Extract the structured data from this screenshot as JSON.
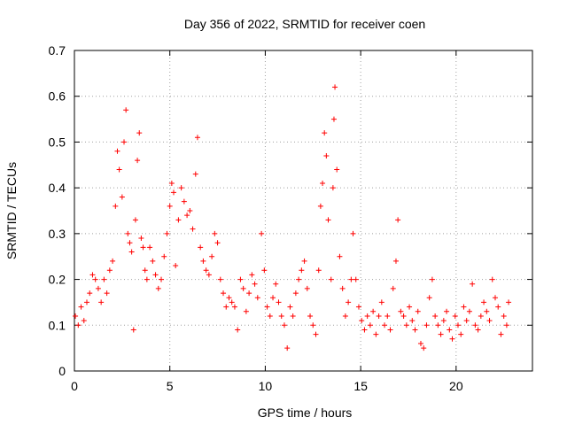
{
  "chart_data": {
    "type": "scatter",
    "title": "Day 356 of 2022, SRMTID for receiver coen",
    "xlabel": "GPS time / hours",
    "ylabel": "SRMTID / TECUs",
    "xlim": [
      0,
      24
    ],
    "ylim": [
      0,
      0.7
    ],
    "xticks": [
      0,
      5,
      10,
      15,
      20
    ],
    "yticks": [
      0,
      0.1,
      0.2,
      0.3,
      0.4,
      0.5,
      0.6,
      0.7
    ],
    "grid": true,
    "marker": "+",
    "color": "#ff0000",
    "series": [
      {
        "name": "SRMTID",
        "points": [
          [
            0.05,
            0.12
          ],
          [
            0.2,
            0.1
          ],
          [
            0.35,
            0.14
          ],
          [
            0.5,
            0.11
          ],
          [
            0.65,
            0.15
          ],
          [
            0.8,
            0.17
          ],
          [
            0.95,
            0.21
          ],
          [
            1.1,
            0.2
          ],
          [
            1.25,
            0.18
          ],
          [
            1.4,
            0.15
          ],
          [
            1.55,
            0.2
          ],
          [
            1.7,
            0.17
          ],
          [
            1.85,
            0.22
          ],
          [
            2.0,
            0.24
          ],
          [
            2.15,
            0.36
          ],
          [
            2.25,
            0.48
          ],
          [
            2.35,
            0.44
          ],
          [
            2.5,
            0.38
          ],
          [
            2.6,
            0.5
          ],
          [
            2.7,
            0.57
          ],
          [
            2.8,
            0.3
          ],
          [
            2.9,
            0.28
          ],
          [
            3.0,
            0.26
          ],
          [
            3.1,
            0.09
          ],
          [
            3.2,
            0.33
          ],
          [
            3.3,
            0.46
          ],
          [
            3.4,
            0.52
          ],
          [
            3.5,
            0.29
          ],
          [
            3.6,
            0.27
          ],
          [
            3.7,
            0.22
          ],
          [
            3.8,
            0.2
          ],
          [
            3.95,
            0.27
          ],
          [
            4.1,
            0.24
          ],
          [
            4.25,
            0.21
          ],
          [
            4.4,
            0.18
          ],
          [
            4.55,
            0.2
          ],
          [
            4.7,
            0.25
          ],
          [
            4.85,
            0.3
          ],
          [
            5.0,
            0.36
          ],
          [
            5.1,
            0.41
          ],
          [
            5.2,
            0.39
          ],
          [
            5.3,
            0.23
          ],
          [
            5.45,
            0.33
          ],
          [
            5.6,
            0.4
          ],
          [
            5.75,
            0.37
          ],
          [
            5.9,
            0.34
          ],
          [
            6.05,
            0.35
          ],
          [
            6.2,
            0.31
          ],
          [
            6.35,
            0.43
          ],
          [
            6.45,
            0.51
          ],
          [
            6.6,
            0.27
          ],
          [
            6.75,
            0.24
          ],
          [
            6.9,
            0.22
          ],
          [
            7.05,
            0.21
          ],
          [
            7.2,
            0.25
          ],
          [
            7.35,
            0.3
          ],
          [
            7.5,
            0.28
          ],
          [
            7.65,
            0.2
          ],
          [
            7.8,
            0.17
          ],
          [
            7.95,
            0.14
          ],
          [
            8.1,
            0.16
          ],
          [
            8.25,
            0.15
          ],
          [
            8.4,
            0.14
          ],
          [
            8.55,
            0.09
          ],
          [
            8.7,
            0.2
          ],
          [
            8.85,
            0.18
          ],
          [
            9.0,
            0.13
          ],
          [
            9.15,
            0.17
          ],
          [
            9.3,
            0.21
          ],
          [
            9.45,
            0.19
          ],
          [
            9.6,
            0.16
          ],
          [
            9.8,
            0.3
          ],
          [
            9.95,
            0.22
          ],
          [
            10.1,
            0.14
          ],
          [
            10.25,
            0.12
          ],
          [
            10.4,
            0.16
          ],
          [
            10.55,
            0.19
          ],
          [
            10.7,
            0.15
          ],
          [
            10.85,
            0.12
          ],
          [
            11.0,
            0.1
          ],
          [
            11.15,
            0.05
          ],
          [
            11.3,
            0.14
          ],
          [
            11.45,
            0.12
          ],
          [
            11.6,
            0.17
          ],
          [
            11.75,
            0.2
          ],
          [
            11.9,
            0.22
          ],
          [
            12.05,
            0.24
          ],
          [
            12.2,
            0.18
          ],
          [
            12.35,
            0.12
          ],
          [
            12.5,
            0.1
          ],
          [
            12.65,
            0.08
          ],
          [
            12.8,
            0.22
          ],
          [
            12.9,
            0.36
          ],
          [
            13.0,
            0.41
          ],
          [
            13.1,
            0.52
          ],
          [
            13.2,
            0.47
          ],
          [
            13.3,
            0.33
          ],
          [
            13.45,
            0.2
          ],
          [
            13.55,
            0.4
          ],
          [
            13.6,
            0.55
          ],
          [
            13.65,
            0.62
          ],
          [
            13.75,
            0.44
          ],
          [
            13.9,
            0.25
          ],
          [
            14.05,
            0.18
          ],
          [
            14.2,
            0.12
          ],
          [
            14.35,
            0.15
          ],
          [
            14.5,
            0.2
          ],
          [
            14.6,
            0.3
          ],
          [
            14.75,
            0.2
          ],
          [
            14.9,
            0.14
          ],
          [
            15.05,
            0.11
          ],
          [
            15.2,
            0.09
          ],
          [
            15.35,
            0.12
          ],
          [
            15.5,
            0.1
          ],
          [
            15.65,
            0.13
          ],
          [
            15.8,
            0.08
          ],
          [
            15.95,
            0.12
          ],
          [
            16.1,
            0.15
          ],
          [
            16.25,
            0.1
          ],
          [
            16.4,
            0.12
          ],
          [
            16.55,
            0.09
          ],
          [
            16.7,
            0.18
          ],
          [
            16.85,
            0.24
          ],
          [
            16.95,
            0.33
          ],
          [
            17.1,
            0.13
          ],
          [
            17.25,
            0.12
          ],
          [
            17.4,
            0.1
          ],
          [
            17.55,
            0.14
          ],
          [
            17.7,
            0.11
          ],
          [
            17.85,
            0.09
          ],
          [
            18.0,
            0.13
          ],
          [
            18.15,
            0.06
          ],
          [
            18.3,
            0.05
          ],
          [
            18.45,
            0.1
          ],
          [
            18.6,
            0.16
          ],
          [
            18.75,
            0.2
          ],
          [
            18.9,
            0.12
          ],
          [
            19.05,
            0.1
          ],
          [
            19.2,
            0.08
          ],
          [
            19.35,
            0.11
          ],
          [
            19.5,
            0.13
          ],
          [
            19.65,
            0.09
          ],
          [
            19.8,
            0.07
          ],
          [
            19.95,
            0.12
          ],
          [
            20.1,
            0.1
          ],
          [
            20.25,
            0.08
          ],
          [
            20.4,
            0.14
          ],
          [
            20.55,
            0.11
          ],
          [
            20.7,
            0.13
          ],
          [
            20.85,
            0.19
          ],
          [
            21.0,
            0.1
          ],
          [
            21.15,
            0.09
          ],
          [
            21.3,
            0.12
          ],
          [
            21.45,
            0.15
          ],
          [
            21.6,
            0.13
          ],
          [
            21.75,
            0.11
          ],
          [
            21.9,
            0.2
          ],
          [
            22.05,
            0.16
          ],
          [
            22.2,
            0.14
          ],
          [
            22.35,
            0.08
          ],
          [
            22.5,
            0.12
          ],
          [
            22.65,
            0.1
          ],
          [
            22.75,
            0.15
          ]
        ]
      }
    ]
  }
}
